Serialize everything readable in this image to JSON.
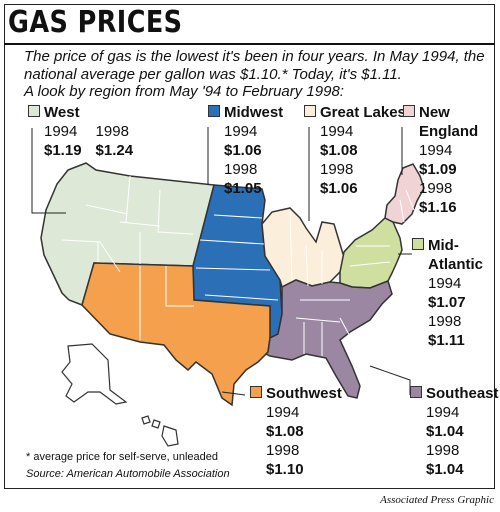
{
  "title": "GAS PRICES",
  "intro": {
    "line1": "The price of gas is the lowest it's been in four years. In May 1994, the",
    "line2": "national average per gallon was $1.10.* Today, it's $1.11.",
    "line3": "A look by region from May '94 to February 1998:"
  },
  "colors": {
    "west": "#dde8d6",
    "midwest": "#2b6fb6",
    "great_lakes": "#fbeedb",
    "new_england": "#efd3d5",
    "mid_atlantic": "#cfdf9f",
    "southwest": "#f5a04c",
    "southeast": "#9c87a3",
    "borders": "#ffffff",
    "outline": "#333333"
  },
  "regions": {
    "west": {
      "name": "West",
      "y1994": "1994",
      "p1994": "$1.19",
      "y1998": "1998",
      "p1998": "$1.24"
    },
    "midwest": {
      "name": "Midwest",
      "y1994": "1994",
      "p1994": "$1.06",
      "y1998": "1998",
      "p1998": "$1.05"
    },
    "great_lakes": {
      "name": "Great Lakes",
      "y1994": "1994",
      "p1994": "$1.08",
      "y1998": "1998",
      "p1998": "$1.06"
    },
    "new_england": {
      "name1": "New",
      "name2": "England",
      "y1994": "1994",
      "p1994": "$1.09",
      "y1998": "1998",
      "p1998": "$1.16"
    },
    "mid_atlantic": {
      "name1": "Mid-",
      "name2": "Atlantic",
      "y1994": "1994",
      "p1994": "$1.07",
      "y1998": "1998",
      "p1998": "$1.11"
    },
    "southwest": {
      "name": "Southwest",
      "y1994": "1994",
      "p1994": "$1.08",
      "y1998": "1998",
      "p1998": "$1.10"
    },
    "southeast": {
      "name": "Southeast",
      "y1994": "1994",
      "p1994": "$1.04",
      "y1998": "1998",
      "p1998": "$1.04"
    }
  },
  "footnote": "* average price for self-serve, unleaded",
  "source": "Source: American Automobile Association",
  "credit": "Associated Press Graphic"
}
